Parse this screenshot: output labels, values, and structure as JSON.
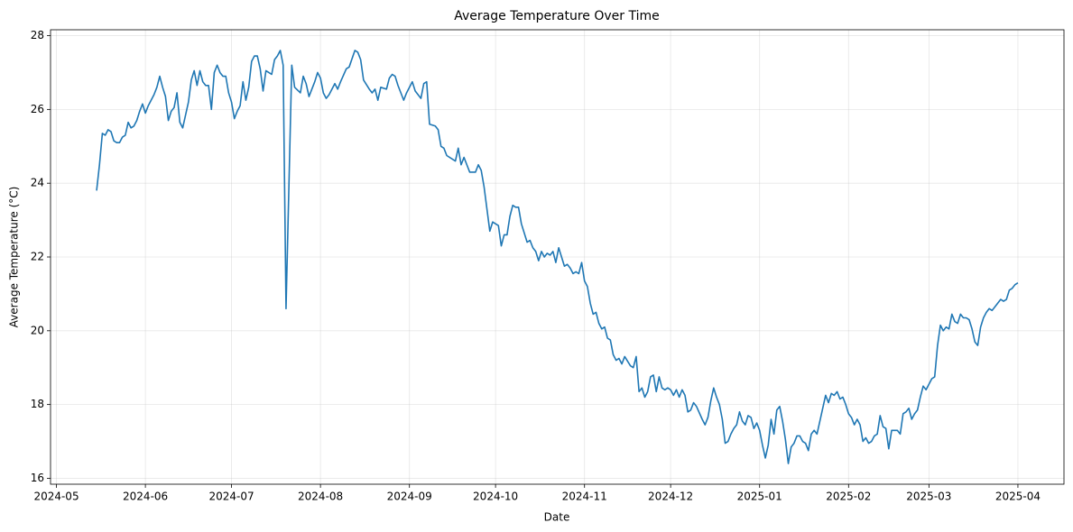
{
  "chart_data": {
    "type": "line",
    "title": "Average Temperature Over Time",
    "x_label": "Date",
    "y_label": "Average Temperature (°C)",
    "color": "#1f77b4",
    "grid": true,
    "xlim": [
      19841.95,
      20195.05
    ],
    "ylim": [
      15.84,
      28.16
    ],
    "xticks": [
      {
        "value": 19844,
        "label": "2024-05"
      },
      {
        "value": 19875,
        "label": "2024-06"
      },
      {
        "value": 19905,
        "label": "2024-07"
      },
      {
        "value": 19936,
        "label": "2024-08"
      },
      {
        "value": 19967,
        "label": "2024-09"
      },
      {
        "value": 19997,
        "label": "2024-10"
      },
      {
        "value": 20028,
        "label": "2024-11"
      },
      {
        "value": 20058,
        "label": "2024-12"
      },
      {
        "value": 20089,
        "label": "2025-01"
      },
      {
        "value": 20120,
        "label": "2025-02"
      },
      {
        "value": 20148,
        "label": "2025-03"
      },
      {
        "value": 20179,
        "label": "2025-04"
      }
    ],
    "yticks": [
      16,
      18,
      20,
      22,
      24,
      26,
      28
    ],
    "x": [
      19858,
      19859,
      19860,
      19861,
      19862,
      19863,
      19864,
      19865,
      19866,
      19867,
      19868,
      19869,
      19870,
      19871,
      19872,
      19873,
      19874,
      19875,
      19876,
      19877,
      19878,
      19879,
      19880,
      19881,
      19882,
      19883,
      19884,
      19885,
      19886,
      19887,
      19888,
      19889,
      19890,
      19891,
      19892,
      19893,
      19894,
      19895,
      19896,
      19897,
      19898,
      19899,
      19900,
      19901,
      19902,
      19903,
      19904,
      19905,
      19906,
      19907,
      19908,
      19909,
      19910,
      19911,
      19912,
      19913,
      19914,
      19915,
      19916,
      19917,
      19918,
      19919,
      19920,
      19921,
      19922,
      19923,
      19924,
      19926,
      19927,
      19929,
      19930,
      19931,
      19932,
      19934,
      19935,
      19936,
      19937,
      19938,
      19939,
      19941,
      19942,
      19943,
      19945,
      19946,
      19948,
      19949,
      19950,
      19951,
      19953,
      19954,
      19955,
      19956,
      19957,
      19959,
      19960,
      19961,
      19962,
      19963,
      19965,
      19966,
      19968,
      19969,
      19971,
      19972,
      19973,
      19974,
      19976,
      19977,
      19978,
      19979,
      19980,
      19982,
      19983,
      19984,
      19985,
      19986,
      19987,
      19988,
      19990,
      19991,
      19992,
      19993,
      19994,
      19995,
      19996,
      19998,
      19999,
      20000,
      20001,
      20002,
      20003,
      20004,
      20005,
      20006,
      20008,
      20009,
      20010,
      20011,
      20012,
      20013,
      20014,
      20015,
      20016,
      20017,
      20018,
      20019,
      20020,
      20021,
      20022,
      20023,
      20024,
      20025,
      20026,
      20027,
      20028,
      20029,
      20030,
      20031,
      20032,
      20033,
      20034,
      20035,
      20036,
      20037,
      20038,
      20039,
      20040,
      20041,
      20042,
      20044,
      20045,
      20046,
      20047,
      20048,
      20049,
      20050,
      20051,
      20052,
      20053,
      20054,
      20055,
      20056,
      20057,
      20058,
      20059,
      20060,
      20061,
      20062,
      20063,
      20064,
      20065,
      20066,
      20067,
      20069,
      20070,
      20071,
      20072,
      20073,
      20074,
      20075,
      20076,
      20077,
      20078,
      20079,
      20080,
      20081,
      20082,
      20083,
      20084,
      20085,
      20086,
      20087,
      20088,
      20089,
      20090,
      20091,
      20092,
      20093,
      20094,
      20095,
      20096,
      20097,
      20098,
      20099,
      20100,
      20101,
      20102,
      20103,
      20104,
      20105,
      20106,
      20107,
      20108,
      20109,
      20110,
      20111,
      20112,
      20113,
      20114,
      20115,
      20116,
      20117,
      20118,
      20119,
      20120,
      20121,
      20122,
      20123,
      20124,
      20125,
      20126,
      20127,
      20128,
      20129,
      20130,
      20131,
      20132,
      20133,
      20134,
      20135,
      20136,
      20137,
      20138,
      20139,
      20140,
      20141,
      20142,
      20143,
      20144,
      20145,
      20146,
      20147,
      20148,
      20149,
      20150,
      20151,
      20152,
      20153,
      20154,
      20155,
      20156,
      20157,
      20158,
      20159,
      20160,
      20161,
      20162,
      20163,
      20164,
      20165,
      20166,
      20167,
      20168,
      20169,
      20170,
      20171,
      20172,
      20173,
      20174,
      20175,
      20176,
      20177,
      20178,
      20179
    ],
    "values": [
      23.8,
      24.5,
      25.35,
      25.3,
      25.45,
      25.4,
      25.15,
      25.1,
      25.1,
      25.25,
      25.3,
      25.65,
      25.5,
      25.55,
      25.7,
      25.95,
      26.15,
      25.9,
      26.1,
      26.25,
      26.4,
      26.6,
      26.9,
      26.6,
      26.35,
      25.7,
      25.95,
      26.05,
      26.45,
      25.65,
      25.5,
      25.85,
      26.2,
      26.8,
      27.05,
      26.65,
      27.05,
      26.75,
      26.65,
      26.65,
      26.0,
      27.0,
      27.2,
      27.0,
      26.9,
      26.9,
      26.45,
      26.2,
      25.75,
      25.95,
      26.1,
      26.75,
      26.25,
      26.6,
      27.3,
      27.45,
      27.45,
      27.1,
      26.5,
      27.05,
      27.0,
      26.95,
      27.35,
      27.45,
      27.6,
      27.2,
      20.6,
      27.2,
      26.6,
      26.45,
      26.9,
      26.7,
      26.35,
      26.75,
      27.0,
      26.85,
      26.45,
      26.3,
      26.4,
      26.7,
      26.55,
      26.75,
      27.1,
      27.15,
      27.6,
      27.55,
      27.35,
      26.8,
      26.55,
      26.45,
      26.55,
      26.25,
      26.6,
      26.55,
      26.85,
      26.95,
      26.9,
      26.65,
      26.25,
      26.45,
      26.75,
      26.5,
      26.3,
      26.7,
      26.75,
      25.6,
      25.55,
      25.45,
      25.0,
      24.95,
      24.75,
      24.65,
      24.6,
      24.95,
      24.5,
      24.7,
      24.5,
      24.3,
      24.3,
      24.5,
      24.35,
      23.9,
      23.3,
      22.7,
      22.95,
      22.85,
      22.3,
      22.6,
      22.6,
      23.1,
      23.4,
      23.35,
      23.35,
      22.9,
      22.4,
      22.45,
      22.25,
      22.15,
      21.9,
      22.15,
      22.0,
      22.1,
      22.05,
      22.15,
      21.85,
      22.25,
      22.0,
      21.75,
      21.8,
      21.7,
      21.55,
      21.6,
      21.55,
      21.85,
      21.35,
      21.2,
      20.75,
      20.45,
      20.5,
      20.2,
      20.05,
      20.1,
      19.8,
      19.75,
      19.35,
      19.2,
      19.25,
      19.1,
      19.3,
      19.05,
      19.0,
      19.3,
      18.35,
      18.45,
      18.2,
      18.35,
      18.75,
      18.8,
      18.35,
      18.75,
      18.45,
      18.4,
      18.45,
      18.4,
      18.25,
      18.4,
      18.2,
      18.4,
      18.25,
      17.8,
      17.85,
      18.05,
      17.95,
      17.6,
      17.45,
      17.65,
      18.1,
      18.45,
      18.2,
      18.0,
      17.6,
      16.95,
      17.0,
      17.2,
      17.35,
      17.45,
      17.8,
      17.55,
      17.45,
      17.7,
      17.65,
      17.35,
      17.5,
      17.3,
      16.9,
      16.55,
      16.9,
      17.6,
      17.2,
      17.85,
      17.95,
      17.55,
      17.05,
      16.4,
      16.85,
      16.95,
      17.15,
      17.15,
      17.0,
      16.95,
      16.75,
      17.2,
      17.3,
      17.2,
      17.55,
      17.9,
      18.25,
      18.05,
      18.3,
      18.25,
      18.35,
      18.15,
      18.2,
      18.0,
      17.75,
      17.65,
      17.45,
      17.6,
      17.45,
      17.0,
      17.1,
      16.95,
      17.0,
      17.15,
      17.2,
      17.7,
      17.4,
      17.35,
      16.8,
      17.3,
      17.3,
      17.3,
      17.2,
      17.75,
      17.8,
      17.9,
      17.6,
      17.75,
      17.85,
      18.2,
      18.5,
      18.4,
      18.55,
      18.7,
      18.75,
      19.6,
      20.15,
      20.0,
      20.1,
      20.05,
      20.45,
      20.25,
      20.2,
      20.45,
      20.35,
      20.35,
      20.3,
      20.05,
      19.7,
      19.6,
      20.1,
      20.35,
      20.5,
      20.6,
      20.55,
      20.65,
      20.75,
      20.85,
      20.8,
      20.85,
      21.1,
      21.15,
      21.25,
      21.3
    ]
  }
}
